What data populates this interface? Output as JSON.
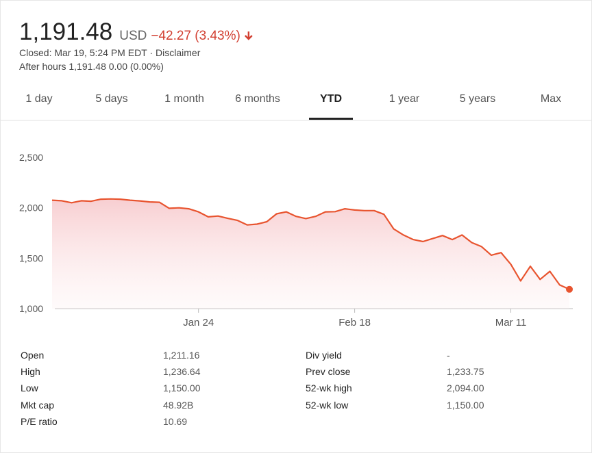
{
  "header": {
    "price": "1,191.48",
    "currency": "USD",
    "change": "−42.27 (3.43%)",
    "closed": "Closed: Mar 19, 5:24 PM EDT ·",
    "disclaimer": "Disclaimer",
    "after_hours": "After hours 1,191.48 0.00 (0.00%)"
  },
  "tabs": [
    "1 day",
    "5 days",
    "1 month",
    "6 months",
    "YTD",
    "1 year",
    "5 years",
    "Max"
  ],
  "selected_tab": 4,
  "stats": [
    [
      "Open",
      "1,211.16",
      "Div yield",
      "-"
    ],
    [
      "High",
      "1,236.64",
      "Prev close",
      "1,233.75"
    ],
    [
      "Low",
      "1,150.00",
      "52-wk high",
      "2,094.00"
    ],
    [
      "Mkt cap",
      "48.92B",
      "52-wk low",
      "1,150.00"
    ],
    [
      "P/E ratio",
      "10.69"
    ]
  ],
  "chart_data": {
    "type": "line",
    "color": "#e8542f",
    "categories": [
      null,
      null,
      null,
      null,
      null,
      null,
      null,
      null,
      null,
      null,
      null,
      null,
      null,
      null,
      null,
      "Jan 24",
      null,
      null,
      null,
      null,
      null,
      null,
      null,
      null,
      null,
      null,
      null,
      null,
      null,
      null,
      null,
      "Feb 18",
      null,
      null,
      null,
      null,
      null,
      null,
      null,
      null,
      null,
      null,
      null,
      null,
      null,
      null,
      null,
      "Mar 11",
      null,
      null,
      null,
      null,
      null,
      null
    ],
    "values": [
      2075,
      2070,
      2050,
      2070,
      2065,
      2085,
      2088,
      2085,
      2075,
      2068,
      2058,
      2055,
      1995,
      2000,
      1990,
      1960,
      1910,
      1918,
      1895,
      1875,
      1830,
      1838,
      1862,
      1940,
      1960,
      1915,
      1893,
      1915,
      1960,
      1962,
      1990,
      1978,
      1972,
      1972,
      1935,
      1790,
      1730,
      1685,
      1665,
      1695,
      1725,
      1685,
      1730,
      1655,
      1615,
      1530,
      1555,
      1440,
      1275,
      1420,
      1290,
      1370,
      1235,
      1191.48
    ],
    "ylim": [
      1000,
      2500
    ],
    "yticks": [
      {
        "value": 1000,
        "label": "1,000"
      },
      {
        "value": 1500,
        "label": "1,500"
      },
      {
        "value": 2000,
        "label": "2,000"
      },
      {
        "value": 2500,
        "label": "2,500"
      }
    ],
    "grid": false
  }
}
